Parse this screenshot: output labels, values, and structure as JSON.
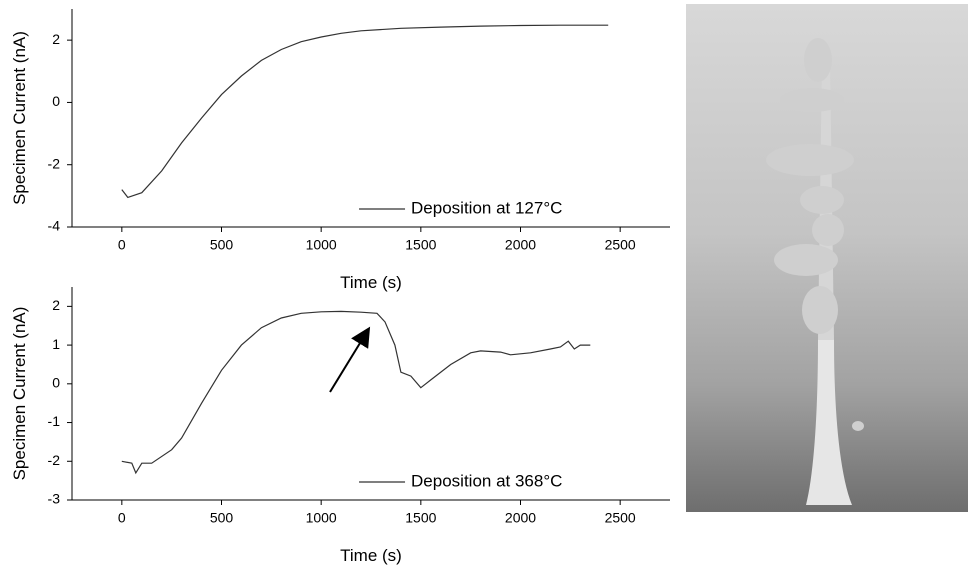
{
  "chart_data": [
    {
      "type": "line",
      "x_label": "Time (s)",
      "y_label": "Specimen Current (nA)",
      "x": [
        0,
        30,
        100,
        200,
        300,
        400,
        500,
        600,
        700,
        800,
        900,
        1000,
        1100,
        1200,
        1400,
        1600,
        1800,
        2000,
        2200,
        2440
      ],
      "series": [
        {
          "name": "Deposition at 127°C",
          "color": "#333333",
          "values": [
            -2.8,
            -3.05,
            -2.9,
            -2.2,
            -1.3,
            -0.5,
            0.25,
            0.85,
            1.35,
            1.7,
            1.95,
            2.1,
            2.22,
            2.3,
            2.38,
            2.42,
            2.45,
            2.47,
            2.48,
            2.48
          ]
        }
      ],
      "xlim": [
        -250,
        2750
      ],
      "ylim": [
        -4,
        3
      ],
      "xticks": [
        0,
        500,
        1000,
        1500,
        2000,
        2500
      ],
      "yticks": [
        -4,
        -2,
        0,
        2
      ],
      "legend": "lower right"
    },
    {
      "type": "line",
      "x_label": "Time (s)",
      "y_label": "Specimen Current (nA)",
      "x": [
        0,
        50,
        70,
        100,
        150,
        250,
        300,
        400,
        500,
        600,
        700,
        800,
        900,
        1000,
        1100,
        1200,
        1280,
        1320,
        1370,
        1400,
        1450,
        1500,
        1550,
        1650,
        1750,
        1800,
        1900,
        1950,
        2050,
        2150,
        2200,
        2240,
        2270,
        2300,
        2350
      ],
      "series": [
        {
          "name": "Deposition at 368°C",
          "color": "#333333",
          "values": [
            -2.0,
            -2.05,
            -2.3,
            -2.05,
            -2.05,
            -1.7,
            -1.4,
            -0.5,
            0.35,
            1.0,
            1.45,
            1.7,
            1.82,
            1.86,
            1.87,
            1.85,
            1.82,
            1.6,
            1.0,
            0.3,
            0.2,
            -0.1,
            0.1,
            0.5,
            0.8,
            0.85,
            0.82,
            0.75,
            0.8,
            0.9,
            0.95,
            1.1,
            0.9,
            1.0,
            1.0
          ]
        }
      ],
      "xlim": [
        -250,
        2750
      ],
      "ylim": [
        -3,
        2.5
      ],
      "xticks": [
        0,
        500,
        1000,
        1500,
        2000,
        2500
      ],
      "yticks": [
        -3,
        -2,
        -1,
        0,
        1,
        2
      ],
      "legend": "lower right"
    }
  ]
}
